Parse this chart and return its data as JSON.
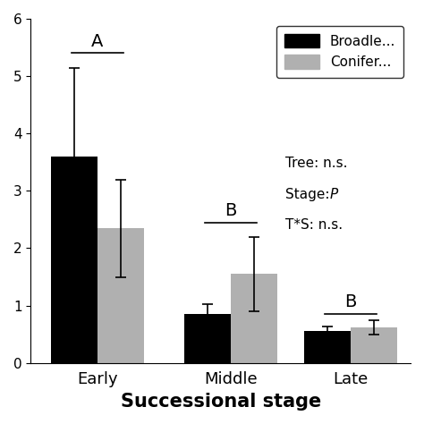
{
  "categories": [
    "Early",
    "Middle",
    "Late"
  ],
  "broadleaf_values": [
    3.6,
    0.85,
    0.55
  ],
  "conifer_values": [
    2.35,
    1.55,
    0.62
  ],
  "broadleaf_errors": [
    1.55,
    0.18,
    0.08
  ],
  "conifer_errors": [
    0.85,
    0.65,
    0.12
  ],
  "broadleaf_color": "#000000",
  "conifer_color": "#b0b0b0",
  "xlabel": "Successional stage",
  "ylabel": "",
  "ylim": [
    0,
    6.0
  ],
  "bar_width": 0.35,
  "significance_labels": [
    "A",
    "B",
    "B"
  ],
  "stat_line1": "Tree: n.s.",
  "stat_line2_prefix": "Stage: ",
  "stat_line2_italic": "P",
  "stat_line3": "T*S: n.s.",
  "legend_label1": "Broadle...",
  "legend_label2": "Conifer...",
  "title": ""
}
